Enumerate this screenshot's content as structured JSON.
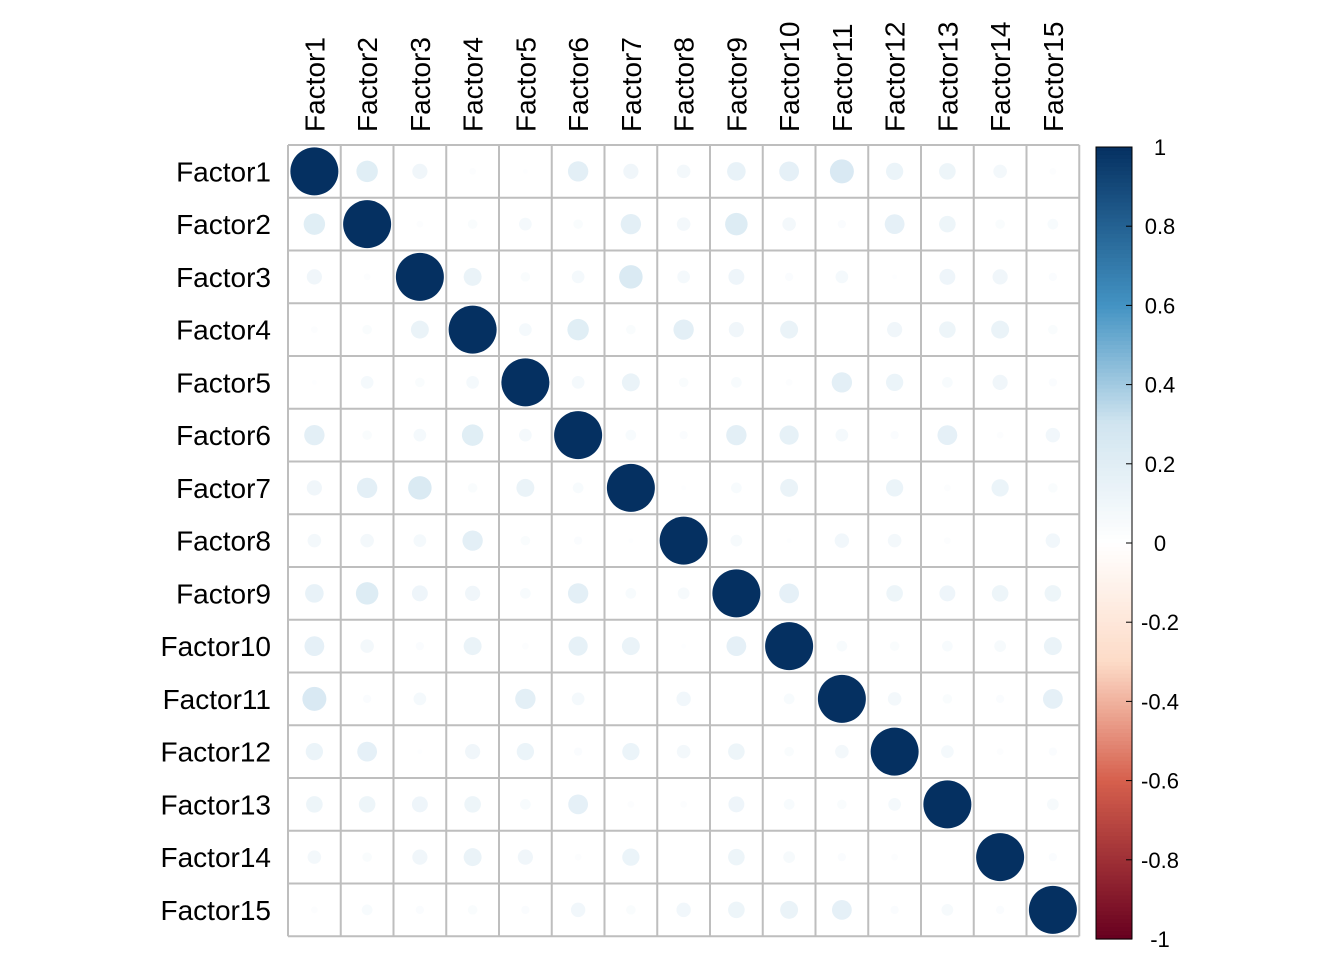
{
  "chart_data": {
    "type": "heatmap",
    "method": "circle",
    "layout": "full",
    "title": "",
    "rows": [
      "Factor1",
      "Factor2",
      "Factor3",
      "Factor4",
      "Factor5",
      "Factor6",
      "Factor7",
      "Factor8",
      "Factor9",
      "Factor10",
      "Factor11",
      "Factor12",
      "Factor13",
      "Factor14",
      "Factor15"
    ],
    "columns": [
      "Factor1",
      "Factor2",
      "Factor3",
      "Factor4",
      "Factor5",
      "Factor6",
      "Factor7",
      "Factor8",
      "Factor9",
      "Factor10",
      "Factor11",
      "Factor12",
      "Factor13",
      "Factor14",
      "Factor15"
    ],
    "matrix": [
      [
        1.0,
        0.2,
        0.1,
        0.02,
        0.01,
        0.18,
        0.1,
        0.08,
        0.15,
        0.17,
        0.25,
        0.13,
        0.12,
        0.08,
        0.02
      ],
      [
        0.2,
        1.0,
        0.02,
        0.04,
        0.07,
        0.04,
        0.18,
        0.08,
        0.22,
        0.08,
        0.03,
        0.17,
        0.12,
        0.04,
        0.05
      ],
      [
        0.1,
        0.02,
        1.0,
        0.14,
        0.04,
        0.07,
        0.24,
        0.07,
        0.11,
        0.03,
        0.07,
        0.01,
        0.11,
        0.1,
        0.03
      ],
      [
        0.02,
        0.04,
        0.14,
        1.0,
        0.07,
        0.2,
        0.04,
        0.18,
        0.1,
        0.14,
        0.0,
        0.1,
        0.12,
        0.14,
        0.04
      ],
      [
        0.01,
        0.07,
        0.04,
        0.07,
        1.0,
        0.07,
        0.14,
        0.04,
        0.05,
        0.02,
        0.18,
        0.13,
        0.05,
        0.1,
        0.03
      ],
      [
        0.18,
        0.04,
        0.07,
        0.2,
        0.07,
        1.0,
        0.05,
        0.03,
        0.18,
        0.16,
        0.07,
        0.03,
        0.17,
        0.02,
        0.09
      ],
      [
        0.1,
        0.18,
        0.24,
        0.04,
        0.14,
        0.05,
        1.0,
        0.01,
        0.05,
        0.14,
        0.0,
        0.13,
        0.02,
        0.13,
        0.04
      ],
      [
        0.08,
        0.08,
        0.07,
        0.18,
        0.04,
        0.03,
        0.01,
        1.0,
        0.06,
        0.01,
        0.09,
        0.08,
        0.02,
        0.0,
        0.09
      ],
      [
        0.15,
        0.22,
        0.11,
        0.1,
        0.05,
        0.18,
        0.05,
        0.06,
        1.0,
        0.17,
        0.0,
        0.12,
        0.11,
        0.12,
        0.12
      ],
      [
        0.17,
        0.08,
        0.03,
        0.14,
        0.02,
        0.16,
        0.14,
        0.01,
        0.17,
        1.0,
        0.05,
        0.04,
        0.05,
        0.06,
        0.14
      ],
      [
        0.25,
        0.03,
        0.07,
        0.0,
        0.18,
        0.07,
        0.0,
        0.09,
        0.0,
        0.05,
        1.0,
        0.08,
        0.04,
        0.03,
        0.17
      ],
      [
        0.13,
        0.17,
        0.01,
        0.1,
        0.13,
        0.03,
        0.13,
        0.08,
        0.12,
        0.04,
        0.08,
        1.0,
        0.07,
        0.02,
        0.03
      ],
      [
        0.12,
        0.12,
        0.11,
        0.12,
        0.05,
        0.17,
        0.02,
        0.02,
        0.11,
        0.05,
        0.04,
        0.07,
        1.0,
        0.0,
        0.06
      ],
      [
        0.08,
        0.04,
        0.1,
        0.14,
        0.1,
        0.02,
        0.13,
        0.0,
        0.12,
        0.06,
        0.03,
        0.02,
        0.0,
        1.0,
        0.03
      ],
      [
        0.02,
        0.05,
        0.03,
        0.04,
        0.03,
        0.09,
        0.04,
        0.09,
        0.12,
        0.14,
        0.17,
        0.03,
        0.06,
        0.03,
        1.0
      ]
    ],
    "value_range": [
      -1,
      1
    ],
    "colorbar": {
      "ticks": [
        "-1",
        "-0.8",
        "-0.6",
        "-0.4",
        "-0.2",
        "0",
        "0.2",
        "0.4",
        "0.6",
        "0.8",
        "1"
      ],
      "tick_values": [
        -1,
        -0.8,
        -0.6,
        -0.4,
        -0.2,
        0,
        0.2,
        0.4,
        0.6,
        0.8,
        1
      ],
      "placement": "right"
    },
    "palette": {
      "stops": [
        -1,
        -0.6,
        -0.3,
        0,
        0.3,
        0.6,
        1
      ],
      "colors": [
        "#67001F",
        "#D6604D",
        "#FDDBC7",
        "#FFFFFF",
        "#D1E5F0",
        "#4393C3",
        "#053061"
      ]
    },
    "grid_color": "#BEBEBE"
  }
}
